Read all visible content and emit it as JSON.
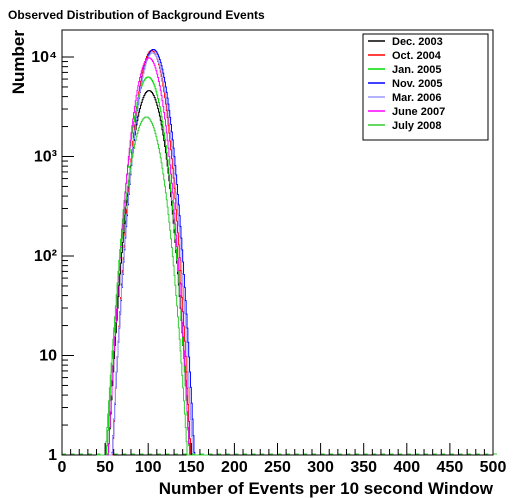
{
  "chart_data": {
    "type": "line",
    "title": "Observed Distribution of Background Events",
    "xlabel": "Number of Events per 10 second Window",
    "ylabel": "Number",
    "xlim": [
      0,
      500
    ],
    "ylim": [
      1,
      20000
    ],
    "yscale": "log",
    "grid": false,
    "legend_position": "top-right",
    "x_ticks": [
      0,
      50,
      100,
      150,
      200,
      250,
      300,
      350,
      400,
      450,
      500
    ],
    "y_ticks": [
      {
        "value": 1,
        "label": "1"
      },
      {
        "value": 10,
        "label": "10"
      },
      {
        "value": 100,
        "label": "10²"
      },
      {
        "value": 1000,
        "label": "10³"
      },
      {
        "value": 10000,
        "label": "10⁴"
      }
    ],
    "series": [
      {
        "name": "Dec. 2003",
        "color": "#000000",
        "mu": 101,
        "sigma": 11.5,
        "peak": 4600
      },
      {
        "name": "Oct. 2004",
        "color": "#ff0000",
        "mu": 104,
        "sigma": 10.5,
        "peak": 11600
      },
      {
        "name": "Jan. 2005",
        "color": "#00dd00",
        "mu": 100,
        "sigma": 11.5,
        "peak": 6300
      },
      {
        "name": "Nov. 2005",
        "color": "#0000ff",
        "mu": 106,
        "sigma": 11.0,
        "peak": 11900
      },
      {
        "name": "Mar. 2006",
        "color": "#9999ff",
        "mu": 105,
        "sigma": 10.8,
        "peak": 11000
      },
      {
        "name": "June 2007",
        "color": "#ff00ff",
        "mu": 101,
        "sigma": 11.0,
        "peak": 9800
      },
      {
        "name": "July 2008",
        "color": "#33cc33",
        "mu": 98,
        "sigma": 12.0,
        "peak": 2500
      }
    ]
  }
}
